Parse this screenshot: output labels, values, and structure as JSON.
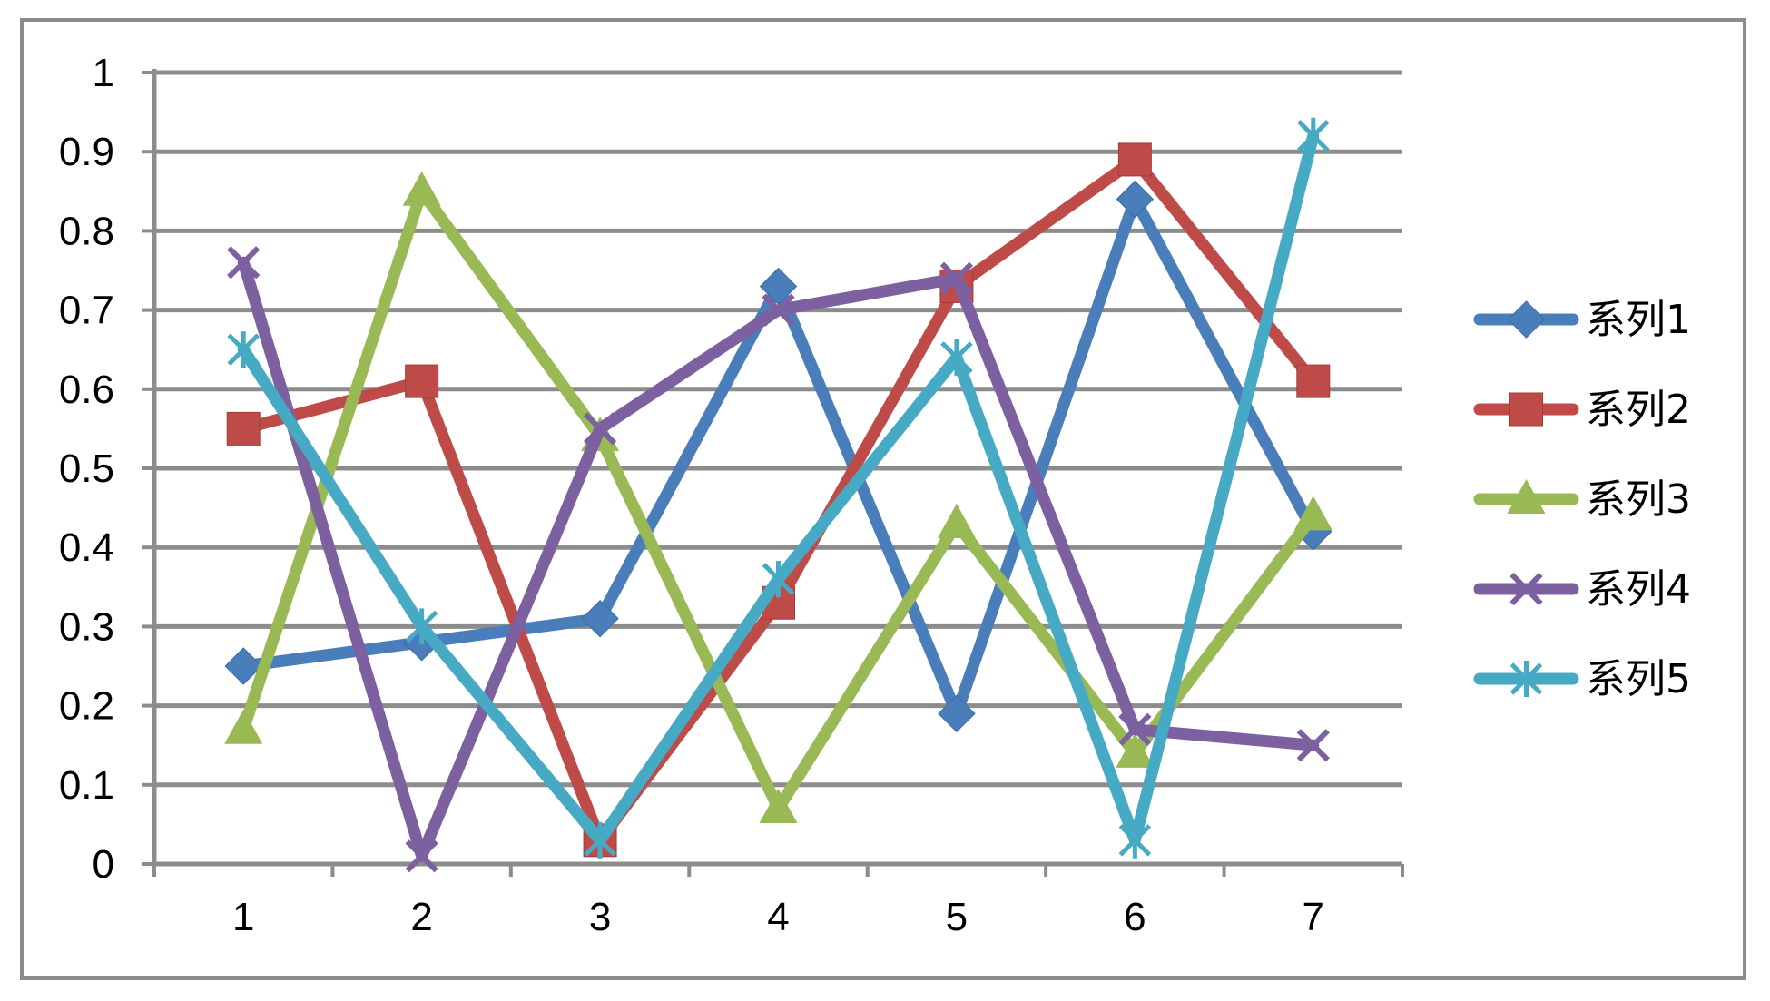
{
  "chart_data": {
    "type": "line",
    "title": "",
    "xlabel": "",
    "ylabel": "",
    "categories": [
      "1",
      "2",
      "3",
      "4",
      "5",
      "6",
      "7"
    ],
    "ylim": [
      0,
      1
    ],
    "yticks": [
      "0",
      "0.1",
      "0.2",
      "0.3",
      "0.4",
      "0.5",
      "0.6",
      "0.7",
      "0.8",
      "0.9",
      "1"
    ],
    "grid": true,
    "legend_position": "right",
    "series": [
      {
        "name": "系列1",
        "color": "#4a7ebb",
        "marker": "diamond",
        "values": [
          0.25,
          0.28,
          0.31,
          0.73,
          0.19,
          0.84,
          0.42
        ]
      },
      {
        "name": "系列2",
        "color": "#be4b48",
        "marker": "square",
        "values": [
          0.55,
          0.61,
          0.03,
          0.33,
          0.73,
          0.89,
          0.61
        ]
      },
      {
        "name": "系列3",
        "color": "#98b954",
        "marker": "triangle",
        "values": [
          0.17,
          0.85,
          0.54,
          0.07,
          0.43,
          0.14,
          0.44
        ]
      },
      {
        "name": "系列4",
        "color": "#7d60a0",
        "marker": "x",
        "values": [
          0.76,
          0.01,
          0.55,
          0.7,
          0.74,
          0.17,
          0.15
        ]
      },
      {
        "name": "系列5",
        "color": "#46aac5",
        "marker": "star",
        "values": [
          0.65,
          0.3,
          0.03,
          0.36,
          0.64,
          0.03,
          0.92
        ]
      }
    ]
  }
}
